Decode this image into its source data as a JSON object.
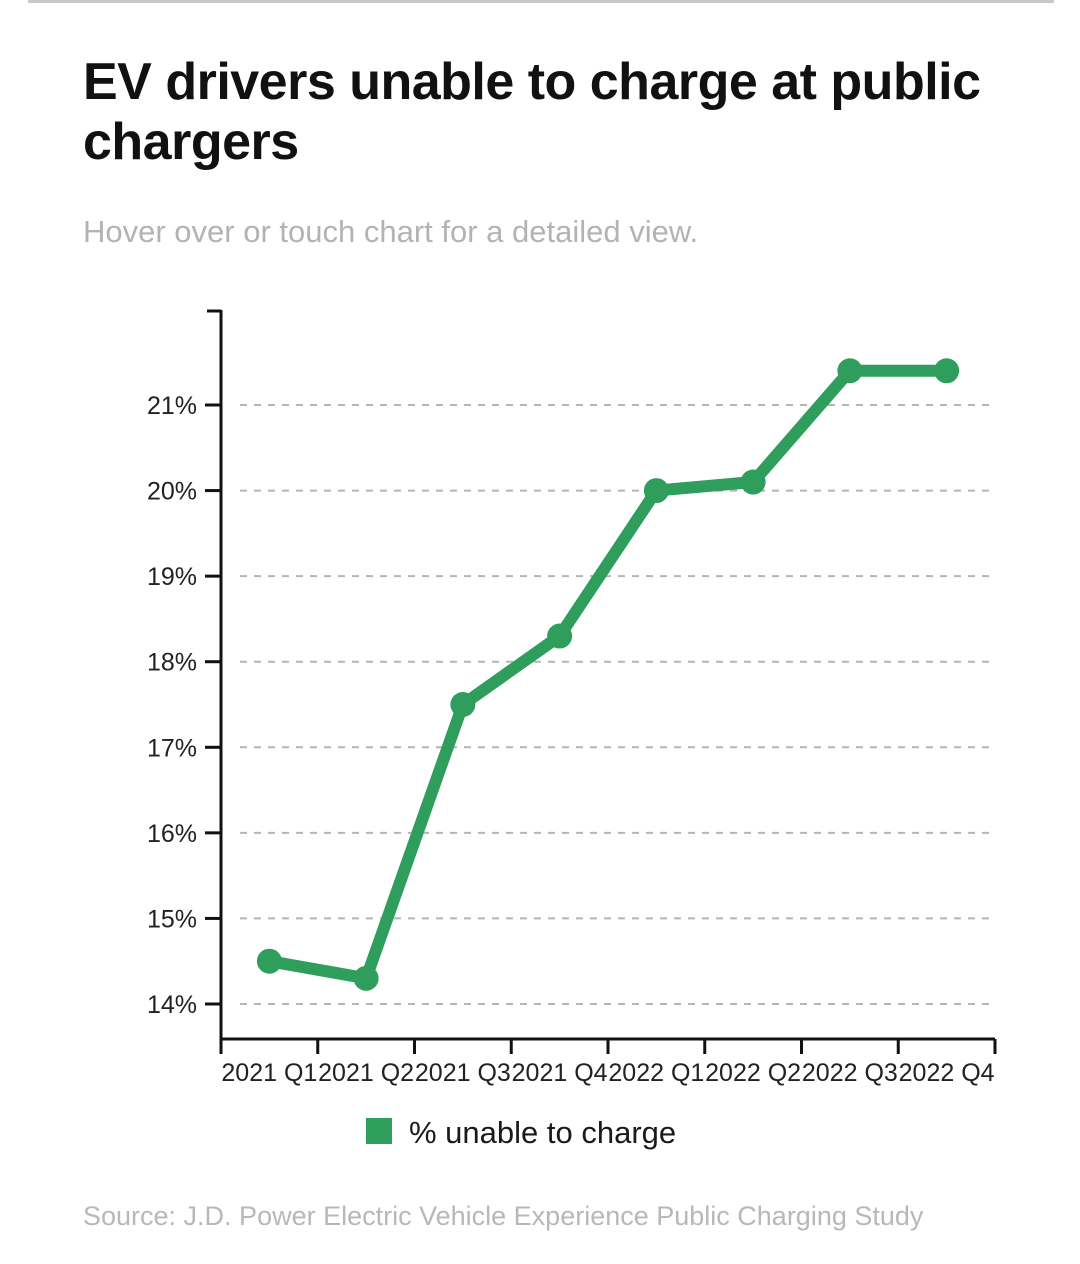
{
  "title": "EV drivers unable to charge at public chargers",
  "subtitle": "Hover over or touch chart for a detailed view.",
  "source": "Source: J.D. Power Electric Vehicle Experience Public Charging Study",
  "colors": {
    "series": "#2f9e5c",
    "grid": "#b5b5b5",
    "axis": "#111111"
  },
  "chart_data": {
    "type": "line",
    "title": "EV drivers unable to charge at public chargers",
    "xlabel": "",
    "ylabel": "",
    "categories": [
      "2021 Q1",
      "2021 Q2",
      "2021 Q3",
      "2021 Q4",
      "2022 Q1",
      "2022 Q2",
      "2022 Q3",
      "2022 Q4"
    ],
    "series": [
      {
        "name": "% unable to charge",
        "values": [
          14.5,
          14.3,
          17.5,
          18.3,
          20.0,
          20.1,
          21.4,
          21.4
        ]
      }
    ],
    "yticks": [
      14,
      15,
      16,
      17,
      18,
      19,
      20,
      21
    ],
    "ytick_labels": [
      "14%",
      "15%",
      "16%",
      "17%",
      "18%",
      "19%",
      "20%",
      "21%"
    ],
    "ylim": [
      13.6,
      22.1
    ],
    "grid": "horizontal dashed",
    "legend": "bottom-center"
  }
}
